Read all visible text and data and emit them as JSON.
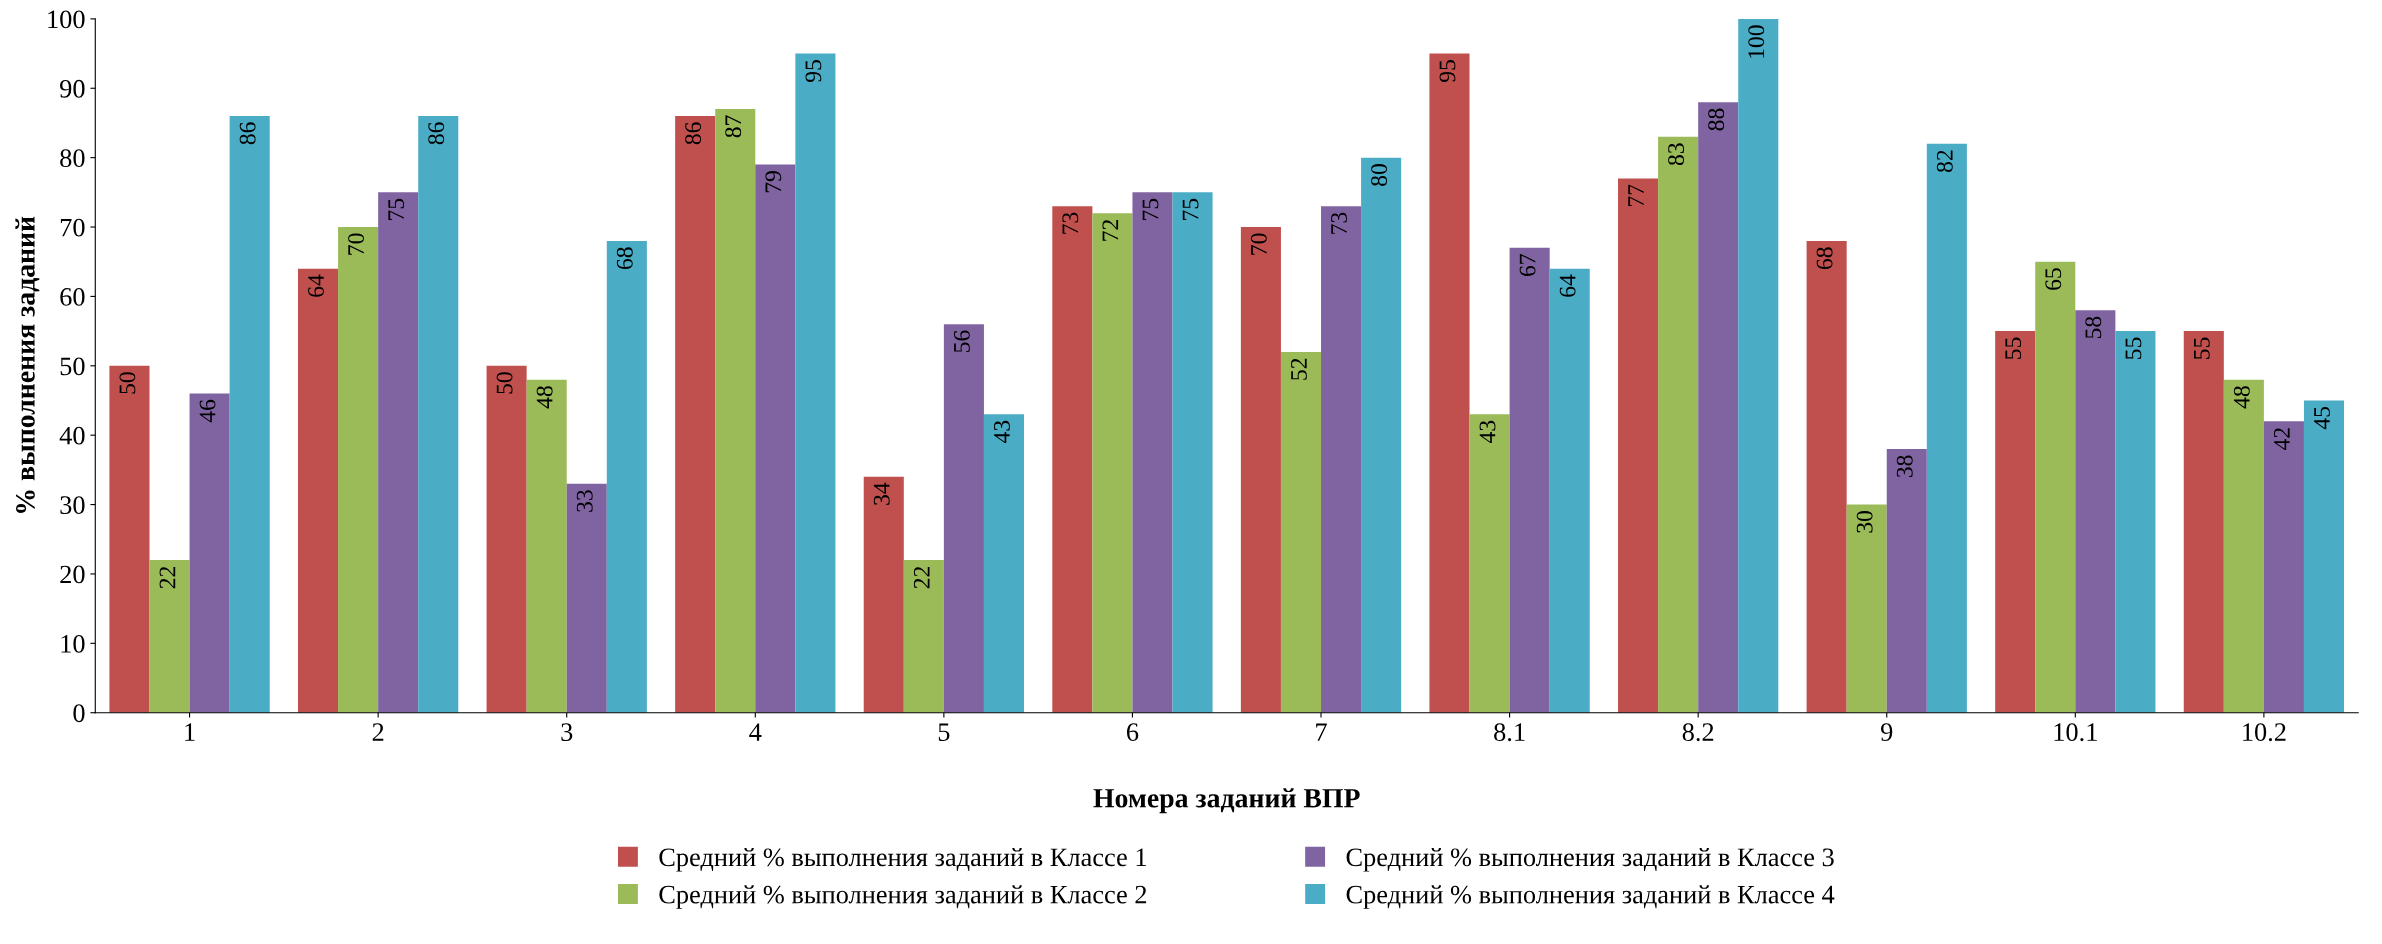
{
  "chart_data": {
    "type": "bar",
    "xlabel": "Номера заданий ВПР",
    "ylabel": "% выполнения заданий",
    "categories": [
      "1",
      "2",
      "3",
      "4",
      "5",
      "6",
      "7",
      "8.1",
      "8.2",
      "9",
      "10.1",
      "10.2"
    ],
    "series": [
      {
        "name": "Средний % выполнения заданий в Классе 1",
        "color": "#c0504d",
        "values": [
          50,
          64,
          50,
          86,
          34,
          73,
          70,
          95,
          77,
          68,
          55,
          55
        ]
      },
      {
        "name": "Средний % выполнения заданий в Классе 2",
        "color": "#9bbb59",
        "values": [
          22,
          70,
          48,
          87,
          22,
          72,
          52,
          43,
          83,
          30,
          65,
          48
        ]
      },
      {
        "name": "Средний % выполнения заданий в Классе 3",
        "color": "#8064a2",
        "values": [
          46,
          75,
          33,
          79,
          56,
          75,
          73,
          67,
          88,
          38,
          58,
          42
        ]
      },
      {
        "name": "Средний % выполнения заданий в Классе 4",
        "color": "#4bacc6",
        "values": [
          86,
          86,
          68,
          95,
          43,
          75,
          80,
          64,
          100,
          82,
          55,
          45
        ]
      }
    ],
    "ylim": [
      0,
      100
    ],
    "yticks": [
      0,
      10,
      20,
      30,
      40,
      50,
      60,
      70,
      80,
      90,
      100
    ],
    "data_labels": true,
    "grid": false,
    "legend": "bottom"
  }
}
